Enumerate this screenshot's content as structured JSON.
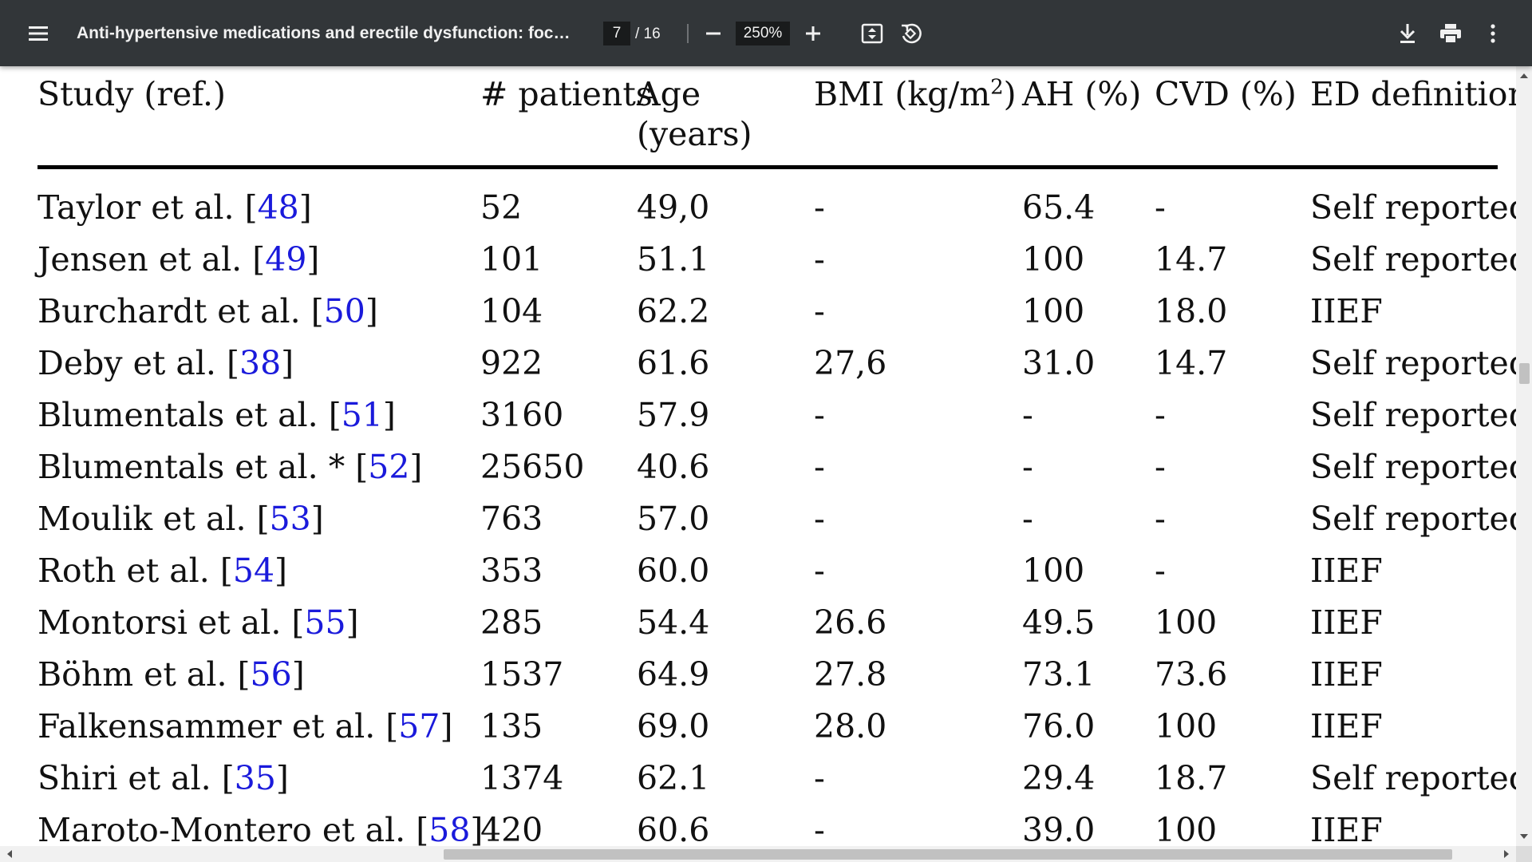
{
  "toolbar": {
    "title": "Anti-hypertensive medications and erectile dysfunction: focus o...",
    "page_current": "7",
    "page_total": "/ 16",
    "zoom": "250%",
    "icons": [
      "menu-icon",
      "zoom-out-icon",
      "zoom-in-icon",
      "fit-page-icon",
      "rotate-icon",
      "download-icon",
      "print-icon",
      "more-vert-icon"
    ]
  },
  "table": {
    "headers": {
      "study": "Study (ref.)",
      "patients": "# patients",
      "age_line1": "Age",
      "age_line2": "(years)",
      "bmi_prefix": "BMI (kg/m",
      "bmi_sup": "2",
      "bmi_suffix": ")",
      "ah": "AH (%)",
      "cvd": "CVD (%)",
      "ed": "ED definition"
    },
    "rows": [
      {
        "study": "Taylor et al. ",
        "ref": "48",
        "patients": "52",
        "age": "49,0",
        "bmi": "-",
        "ah": "65.4",
        "cvd": "-",
        "ed": "Self reported"
      },
      {
        "study": "Jensen et al. ",
        "ref": "49",
        "patients": "101",
        "age": "51.1",
        "bmi": "-",
        "ah": "100",
        "cvd": "14.7",
        "ed": "Self reported"
      },
      {
        "study": "Burchardt et al. ",
        "ref": "50",
        "patients": "104",
        "age": "62.2",
        "bmi": "-",
        "ah": "100",
        "cvd": "18.0",
        "ed": "IIEF"
      },
      {
        "study": "Deby et al. ",
        "ref": "38",
        "patients": "922",
        "age": "61.6",
        "bmi": "27,6",
        "ah": "31.0",
        "cvd": "14.7",
        "ed": "Self reported"
      },
      {
        "study": "Blumentals et al. ",
        "ref": "51",
        "patients": "3160",
        "age": "57.9",
        "bmi": "-",
        "ah": "-",
        "cvd": "-",
        "ed": "Self reported"
      },
      {
        "study": "Blumentals et al. * ",
        "ref": "52",
        "patients": "25650",
        "age": "40.6",
        "bmi": "-",
        "ah": "-",
        "cvd": "-",
        "ed": "Self reported"
      },
      {
        "study": "Moulik et al. ",
        "ref": "53",
        "patients": "763",
        "age": "57.0",
        "bmi": "-",
        "ah": "-",
        "cvd": "-",
        "ed": "Self reported"
      },
      {
        "study": "Roth et al. ",
        "ref": "54",
        "patients": "353",
        "age": "60.0",
        "bmi": "-",
        "ah": "100",
        "cvd": "-",
        "ed": "IIEF"
      },
      {
        "study": "Montorsi et al. ",
        "ref": "55",
        "patients": "285",
        "age": "54.4",
        "bmi": "26.6",
        "ah": "49.5",
        "cvd": "100",
        "ed": "IIEF"
      },
      {
        "study": "Böhm et al. ",
        "ref": "56",
        "patients": "1537",
        "age": "64.9",
        "bmi": "27.8",
        "ah": "73.1",
        "cvd": "73.6",
        "ed": "IIEF"
      },
      {
        "study": "Falkensammer et al. ",
        "ref": "57",
        "patients": "135",
        "age": "69.0",
        "bmi": "28.0",
        "ah": "76.0",
        "cvd": "100",
        "ed": "IIEF"
      },
      {
        "study": "Shiri et al. ",
        "ref": "35",
        "patients": "1374",
        "age": "62.1",
        "bmi": "-",
        "ah": "29.4",
        "cvd": "18.7",
        "ed": "Self reported"
      },
      {
        "study": "Maroto-Montero et al. ",
        "ref": "58",
        "patients": "420",
        "age": "60.6",
        "bmi": "-",
        "ah": "39.0",
        "cvd": "100",
        "ed": "IIEF"
      }
    ]
  },
  "scroll": {
    "vertical_fraction": 0.38,
    "horizontal_fraction": 0.29
  }
}
